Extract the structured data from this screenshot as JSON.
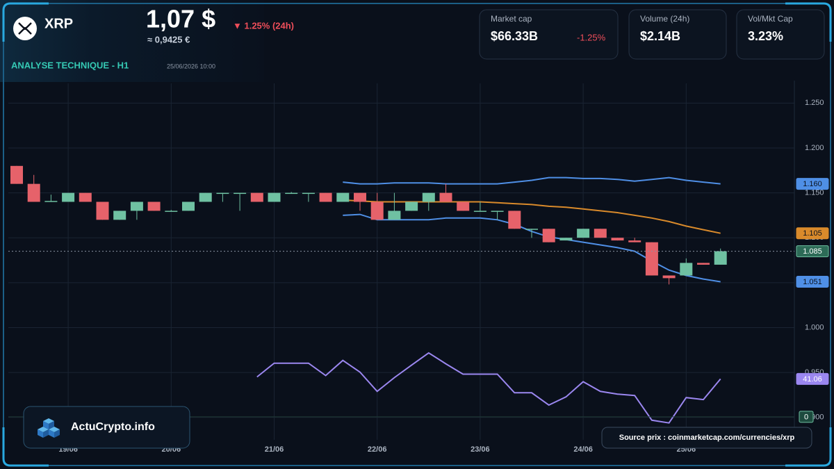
{
  "header": {
    "symbol": "XRP",
    "price": "1,07 $",
    "price_eur": "≈ 0,9425 €",
    "change": "▼ 1.25% (24h)",
    "subtitle": "ANALYSE TECHNIQUE - H1",
    "timestamp": "25/06/2026 10:00"
  },
  "stats": [
    {
      "label": "Market cap",
      "value": "$66.33B",
      "change": "-1.25%"
    },
    {
      "label": "Volume (24h)",
      "value": "$2.14B"
    },
    {
      "label": "Vol/Mkt Cap",
      "value": "3.23%"
    }
  ],
  "footer": {
    "brand": "ActuCrypto.info",
    "source": "Source prix : coinmarketcap.com/currencies/xrp"
  },
  "chart_data": {
    "type": "candlestick",
    "categories": [
      null,
      null,
      null,
      "19/06",
      null,
      null,
      null,
      null,
      null,
      "20/06",
      null,
      null,
      null,
      null,
      null,
      "21/06",
      null,
      null,
      null,
      null,
      null,
      "22/06",
      null,
      null,
      null,
      null,
      null,
      "23/06",
      null,
      null,
      null,
      null,
      null,
      "24/06",
      null,
      null,
      null,
      null,
      null,
      "25/06",
      null,
      null
    ],
    "open": [
      1.18,
      1.16,
      1.141,
      1.14,
      1.15,
      1.14,
      1.12,
      1.13,
      1.14,
      1.13,
      1.13,
      1.14,
      1.15,
      1.15,
      1.15,
      1.14,
      1.15,
      1.15,
      1.15,
      1.14,
      1.15,
      1.14,
      1.12,
      1.13,
      1.14,
      1.15,
      1.14,
      1.13,
      1.13,
      1.13,
      1.11,
      1.11,
      1.097,
      1.1,
      1.11,
      1.1,
      1.097,
      1.095,
      1.058,
      1.058,
      1.072,
      1.07
    ],
    "high": [
      1.18,
      1.17,
      1.148,
      1.15,
      1.15,
      1.14,
      1.13,
      1.14,
      1.14,
      1.131,
      1.14,
      1.15,
      1.15,
      1.15,
      1.15,
      1.15,
      1.151,
      1.15,
      1.15,
      1.15,
      1.15,
      1.15,
      1.15,
      1.14,
      1.15,
      1.16,
      1.14,
      1.14,
      1.13,
      1.13,
      1.11,
      1.11,
      1.1,
      1.11,
      1.11,
      1.1,
      1.1,
      1.095,
      1.058,
      1.077,
      1.072,
      1.088
    ],
    "low": [
      1.16,
      1.14,
      1.14,
      1.14,
      1.14,
      1.12,
      1.12,
      1.12,
      1.13,
      1.13,
      1.13,
      1.14,
      1.14,
      1.13,
      1.14,
      1.14,
      1.15,
      1.14,
      1.14,
      1.14,
      1.13,
      1.12,
      1.12,
      1.13,
      1.13,
      1.14,
      1.13,
      1.13,
      1.12,
      1.11,
      1.1,
      1.095,
      1.097,
      1.1,
      1.1,
      1.097,
      1.095,
      1.058,
      1.048,
      1.058,
      1.07,
      1.07
    ],
    "close": [
      1.16,
      1.14,
      1.141,
      1.15,
      1.14,
      1.12,
      1.13,
      1.14,
      1.13,
      1.13,
      1.14,
      1.15,
      1.15,
      1.15,
      1.14,
      1.15,
      1.15,
      1.15,
      1.14,
      1.15,
      1.14,
      1.12,
      1.13,
      1.14,
      1.15,
      1.14,
      1.13,
      1.13,
      1.13,
      1.11,
      1.11,
      1.095,
      1.1,
      1.11,
      1.1,
      1.097,
      1.095,
      1.058,
      1.055,
      1.072,
      1.07,
      1.085
    ],
    "close_labels": [
      null,
      null,
      null,
      null,
      null,
      null,
      null,
      null,
      null,
      null,
      null,
      null,
      null,
      null,
      null,
      null,
      null,
      null,
      null,
      null,
      null,
      null,
      null,
      null,
      null,
      null,
      null,
      null,
      null,
      null,
      null,
      null,
      null,
      null,
      null,
      null,
      null,
      null,
      null,
      null,
      null,
      "1.085"
    ],
    "up_color": "#6fc1a2",
    "down_color": "#e6626a",
    "series": [
      {
        "color": "#4f8fe6",
        "values": [
          null,
          null,
          null,
          null,
          null,
          null,
          null,
          null,
          null,
          null,
          null,
          null,
          null,
          null,
          null,
          null,
          null,
          null,
          null,
          1.162,
          1.16,
          1.16,
          1.161,
          1.161,
          1.161,
          1.16,
          1.16,
          1.16,
          1.16,
          1.162,
          1.164,
          1.167,
          1.167,
          1.166,
          1.166,
          1.165,
          1.163,
          1.165,
          1.167,
          1.164,
          1.162,
          1.16
        ],
        "value_labels": [
          null,
          null,
          null,
          null,
          null,
          null,
          null,
          null,
          null,
          null,
          null,
          null,
          null,
          null,
          null,
          null,
          null,
          null,
          null,
          null,
          null,
          null,
          null,
          null,
          null,
          null,
          null,
          null,
          null,
          null,
          null,
          null,
          null,
          null,
          null,
          null,
          null,
          null,
          null,
          null,
          null,
          "1.160"
        ]
      },
      {
        "color": "#d98a2b",
        "values": [
          null,
          null,
          null,
          null,
          null,
          null,
          null,
          null,
          null,
          null,
          null,
          null,
          null,
          null,
          null,
          null,
          null,
          null,
          null,
          1.142,
          1.141,
          1.14,
          1.14,
          1.14,
          1.14,
          1.14,
          1.14,
          1.14,
          1.139,
          1.138,
          1.137,
          1.135,
          1.134,
          1.132,
          1.13,
          1.128,
          1.125,
          1.122,
          1.118,
          1.113,
          1.109,
          1.105
        ],
        "value_labels": [
          null,
          null,
          null,
          null,
          null,
          null,
          null,
          null,
          null,
          null,
          null,
          null,
          null,
          null,
          null,
          null,
          null,
          null,
          null,
          null,
          null,
          null,
          null,
          null,
          null,
          null,
          null,
          null,
          null,
          null,
          null,
          null,
          null,
          null,
          null,
          null,
          null,
          null,
          null,
          null,
          null,
          "1.105"
        ]
      },
      {
        "color": "#4f8fe6",
        "values": [
          null,
          null,
          null,
          null,
          null,
          null,
          null,
          null,
          null,
          null,
          null,
          null,
          null,
          null,
          null,
          null,
          null,
          null,
          null,
          1.125,
          1.126,
          1.12,
          1.12,
          1.12,
          1.12,
          1.122,
          1.122,
          1.122,
          1.12,
          1.115,
          1.107,
          1.101,
          1.098,
          1.095,
          1.092,
          1.089,
          1.085,
          1.074,
          1.064,
          1.058,
          1.054,
          1.051
        ],
        "value_labels": [
          null,
          null,
          null,
          null,
          null,
          null,
          null,
          null,
          null,
          null,
          null,
          null,
          null,
          null,
          null,
          null,
          null,
          null,
          null,
          null,
          null,
          null,
          null,
          null,
          null,
          null,
          null,
          null,
          null,
          null,
          null,
          null,
          null,
          null,
          null,
          null,
          null,
          null,
          null,
          null,
          null,
          "1.051"
        ]
      },
      {
        "color": "#9b87f0",
        "axis": "y2",
        "values": [
          null,
          null,
          null,
          null,
          null,
          null,
          null,
          null,
          null,
          null,
          null,
          null,
          null,
          null,
          43.3,
          58.2,
          58.2,
          58.2,
          44.8,
          61.2,
          48.5,
          27.6,
          42.5,
          56,
          69.4,
          57.5,
          46.3,
          46.3,
          46.3,
          26.1,
          26.1,
          12.7,
          21.6,
          38.1,
          27.6,
          24.6,
          23.1,
          -3.7,
          -6.7,
          20.9,
          18.7,
          41.06
        ],
        "value_labels": [
          null,
          null,
          null,
          null,
          null,
          null,
          null,
          null,
          null,
          null,
          null,
          null,
          null,
          null,
          null,
          null,
          null,
          null,
          null,
          null,
          null,
          null,
          null,
          null,
          null,
          null,
          null,
          null,
          null,
          null,
          null,
          null,
          null,
          null,
          null,
          null,
          null,
          null,
          null,
          null,
          null,
          "41.06"
        ]
      }
    ],
    "ylim": [
      0.875,
      1.275
    ],
    "yticks": [
      {
        "value": 0.9,
        "label": "0.900"
      },
      {
        "value": 0.95,
        "label": "0.950"
      },
      {
        "value": 1.0,
        "label": "1.000"
      },
      {
        "value": 1.05,
        "label": "1.050"
      },
      {
        "value": 1.1,
        "label": "1.100"
      },
      {
        "value": 1.15,
        "label": "1.150"
      },
      {
        "value": 1.2,
        "label": "1.200"
      },
      {
        "value": 1.25,
        "label": "1.250"
      }
    ],
    "y2lim": [
      -25,
      365
    ],
    "y2ticks": [
      0
    ],
    "grid": true
  }
}
